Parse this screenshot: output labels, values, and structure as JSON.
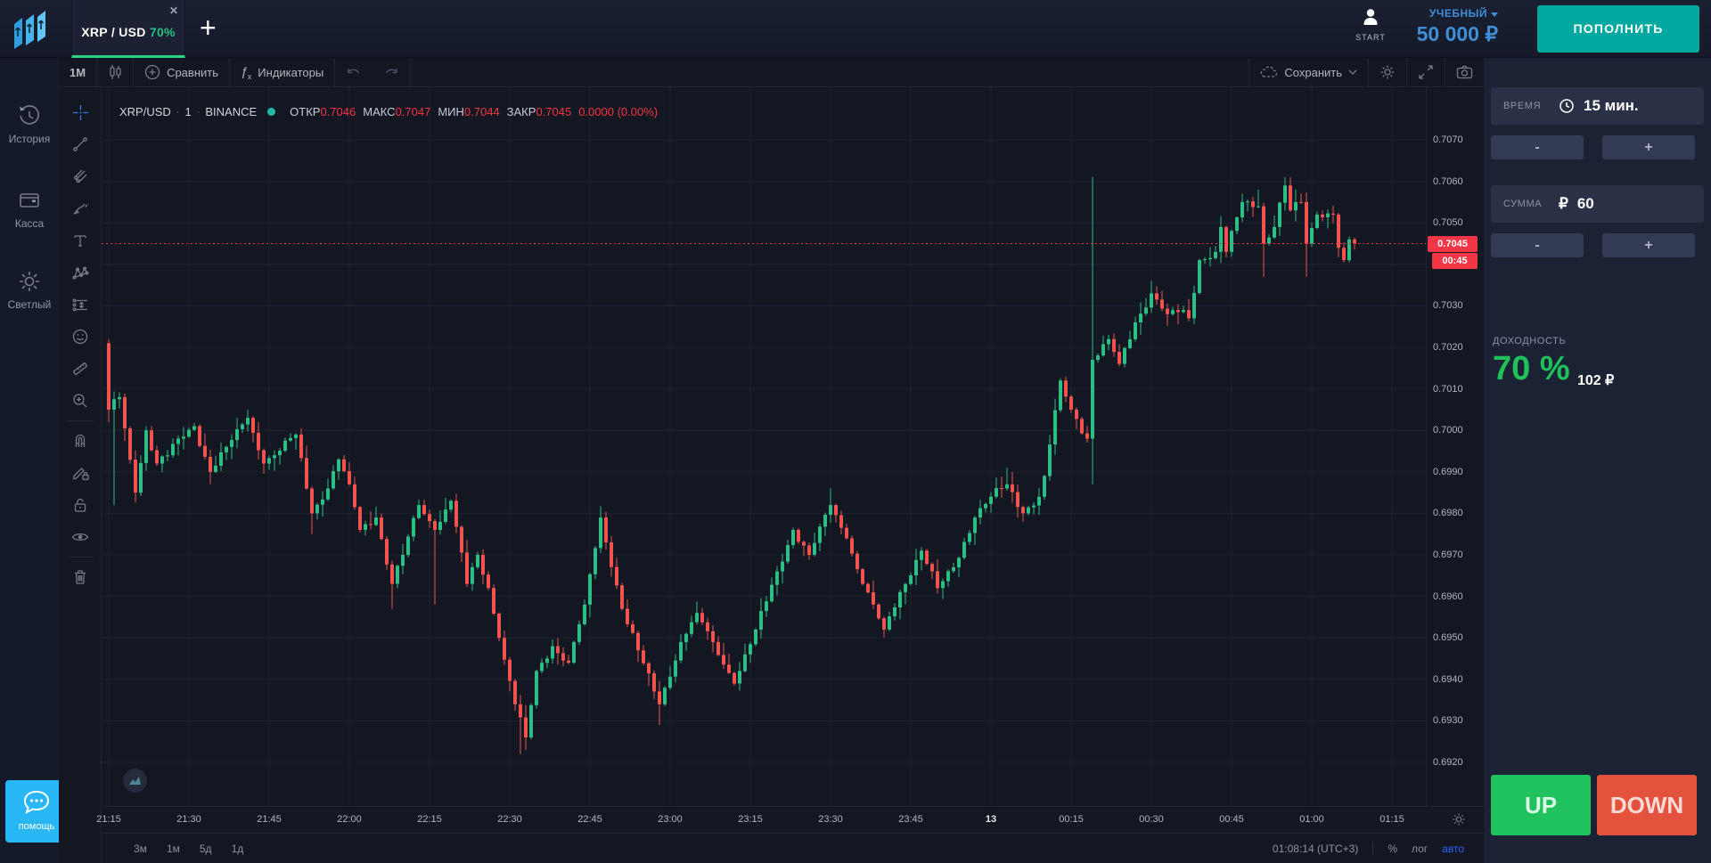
{
  "topbar": {
    "tab_symbol": "XRP / USD",
    "tab_payout": "70%",
    "tab_close": "✕",
    "add_tab": "+",
    "start_label": "START",
    "account_type": "УЧЕБНЫЙ",
    "balance": "50 000 ₽",
    "deposit_label": "ПОПОЛНИТЬ"
  },
  "sidebar": {
    "items": [
      {
        "label": "История"
      },
      {
        "label": "Касса"
      },
      {
        "label": "Светлый"
      }
    ],
    "help_label": "помощь"
  },
  "toolbar": {
    "interval": "1М",
    "compare_label": "Сравнить",
    "indicators_label": "Индикаторы",
    "fx": "ƒ",
    "fx_sub": "x",
    "save_label": "Сохранить"
  },
  "legend": {
    "symbol": "XRP/USD",
    "sep": "·",
    "interval": "1",
    "exchange": "BINANCE",
    "open_label": "ОТКР",
    "open": "0.7046",
    "high_label": "МАКС",
    "high": "0.7047",
    "low_label": "МИН",
    "low": "0.7044",
    "close_label": "ЗАКР",
    "close": "0.7045",
    "change": "0.0000 (0.00%)"
  },
  "trade_panel": {
    "time_label": "ВРЕМЯ",
    "time_value": "15 мин.",
    "minus": "-",
    "plus": "+",
    "amount_label": "СУММА",
    "currency": "₽",
    "amount_value": "60",
    "payout_label": "ДОХОДНОСТЬ",
    "payout_percent": "70 %",
    "payout_amount": "102 ₽",
    "up_label": "UP",
    "down_label": "DOWN"
  },
  "bottom_bar": {
    "ranges": [
      "3м",
      "1м",
      "5д",
      "1д"
    ],
    "clock": "01:08:14 (UTC+3)",
    "percent": "%",
    "log": "лог",
    "auto": "авто"
  },
  "chart_data": {
    "type": "candlestick",
    "symbol": "XRP/USD",
    "exchange": "BINANCE",
    "interval_minutes": 1,
    "up_color": "#2dbd85",
    "down_color": "#f05350",
    "grid_color": "#1c2230",
    "last_price": "0.7045",
    "countdown": "00:45",
    "start_time": "21:15",
    "first_open": 0.7021,
    "ylim": [
      0.6915,
      0.7075
    ],
    "price_ticks": [
      "0.7070",
      "0.7060",
      "0.7050",
      "0.7040",
      "0.7030",
      "0.7020",
      "0.7010",
      "0.7000",
      "0.6990",
      "0.6980",
      "0.6970",
      "0.6960",
      "0.6950",
      "0.6940",
      "0.6930",
      "0.6920"
    ],
    "time_labels": [
      [
        "21:15",
        0
      ],
      [
        "21:30",
        15
      ],
      [
        "21:45",
        30
      ],
      [
        "22:00",
        45
      ],
      [
        "22:15",
        60
      ],
      [
        "22:30",
        75
      ],
      [
        "22:45",
        90
      ],
      [
        "23:00",
        105
      ],
      [
        "23:15",
        120
      ],
      [
        "23:30",
        135
      ],
      [
        "23:45",
        150
      ],
      [
        "13",
        165
      ],
      [
        "00:15",
        180
      ],
      [
        "00:30",
        195
      ],
      [
        "00:45",
        210
      ],
      [
        "01:00",
        225
      ],
      [
        "01:15",
        240
      ]
    ],
    "date_label": "13",
    "price_path": [
      [
        0,
        0.7005
      ],
      [
        2,
        0.7008
      ],
      [
        5,
        0.6985
      ],
      [
        7,
        0.7
      ],
      [
        9,
        0.6992
      ],
      [
        11,
        0.6994
      ],
      [
        13,
        0.6998
      ],
      [
        16,
        0.7001
      ],
      [
        19,
        0.699
      ],
      [
        22,
        0.6996
      ],
      [
        26,
        0.7003
      ],
      [
        29,
        0.6992
      ],
      [
        31,
        0.6994
      ],
      [
        35,
        0.6999
      ],
      [
        38,
        0.698
      ],
      [
        41,
        0.6986
      ],
      [
        43,
        0.6993
      ],
      [
        45,
        0.6987
      ],
      [
        47,
        0.6976
      ],
      [
        50,
        0.6979
      ],
      [
        53,
        0.6963
      ],
      [
        55,
        0.697
      ],
      [
        58,
        0.6982
      ],
      [
        61,
        0.6976
      ],
      [
        64,
        0.6983
      ],
      [
        67,
        0.6963
      ],
      [
        69,
        0.697
      ],
      [
        71,
        0.6962
      ],
      [
        73,
        0.695
      ],
      [
        76,
        0.6934
      ],
      [
        78,
        0.6926
      ],
      [
        80,
        0.6942
      ],
      [
        83,
        0.6948
      ],
      [
        86,
        0.6944
      ],
      [
        89,
        0.6958
      ],
      [
        92,
        0.6979
      ],
      [
        96,
        0.6957
      ],
      [
        99,
        0.6947
      ],
      [
        103,
        0.6934
      ],
      [
        107,
        0.6949
      ],
      [
        110,
        0.6956
      ],
      [
        113,
        0.6949
      ],
      [
        117,
        0.6939
      ],
      [
        121,
        0.6952
      ],
      [
        125,
        0.6966
      ],
      [
        128,
        0.6976
      ],
      [
        131,
        0.697
      ],
      [
        135,
        0.6982
      ],
      [
        138,
        0.6974
      ],
      [
        141,
        0.6963
      ],
      [
        145,
        0.6952
      ],
      [
        148,
        0.6961
      ],
      [
        152,
        0.6971
      ],
      [
        155,
        0.6962
      ],
      [
        158,
        0.6967
      ],
      [
        162,
        0.6979
      ],
      [
        165,
        0.6984
      ],
      [
        168,
        0.6987
      ],
      [
        171,
        0.698
      ],
      [
        174,
        0.6984
      ],
      [
        175,
        0.6989
      ],
      [
        178,
        0.7012
      ],
      [
        180,
        0.7005
      ],
      [
        183,
        0.6998
      ],
      [
        184,
        0.7017
      ],
      [
        187,
        0.7022
      ],
      [
        189,
        0.7016
      ],
      [
        192,
        0.7026
      ],
      [
        195,
        0.7033
      ],
      [
        198,
        0.7028
      ],
      [
        201,
        0.7029
      ],
      [
        202,
        0.7027
      ],
      [
        204,
        0.7041
      ],
      [
        207,
        0.7043
      ],
      [
        208,
        0.7049
      ],
      [
        209,
        0.7043
      ],
      [
        212,
        0.7055
      ],
      [
        215,
        0.7054
      ],
      [
        216,
        0.7045
      ],
      [
        218,
        0.7049
      ],
      [
        220,
        0.7059
      ],
      [
        221,
        0.7053
      ],
      [
        223,
        0.7055
      ],
      [
        224,
        0.7045
      ],
      [
        226,
        0.7052
      ],
      [
        229,
        0.7052
      ],
      [
        230,
        0.7044
      ],
      [
        231,
        0.7041
      ],
      [
        232,
        0.7046
      ],
      [
        233,
        0.7045
      ]
    ],
    "wick_overrides": [
      [
        0,
        0.7022,
        0.7002
      ],
      [
        1,
        null,
        0.6982
      ],
      [
        38,
        null,
        0.6975
      ],
      [
        53,
        null,
        0.6957
      ],
      [
        61,
        null,
        0.6958
      ],
      [
        77,
        null,
        0.6922
      ],
      [
        78,
        null,
        0.6923
      ],
      [
        103,
        null,
        0.6929
      ],
      [
        135,
        0.6986,
        null
      ],
      [
        168,
        0.6991,
        null
      ],
      [
        184,
        0.7061,
        0.6987
      ],
      [
        195,
        0.7036,
        null
      ],
      [
        212,
        0.7057,
        null
      ],
      [
        215,
        0.7058,
        null
      ],
      [
        216,
        null,
        0.7037
      ],
      [
        220,
        0.7061,
        null
      ],
      [
        224,
        null,
        0.7037
      ]
    ]
  }
}
